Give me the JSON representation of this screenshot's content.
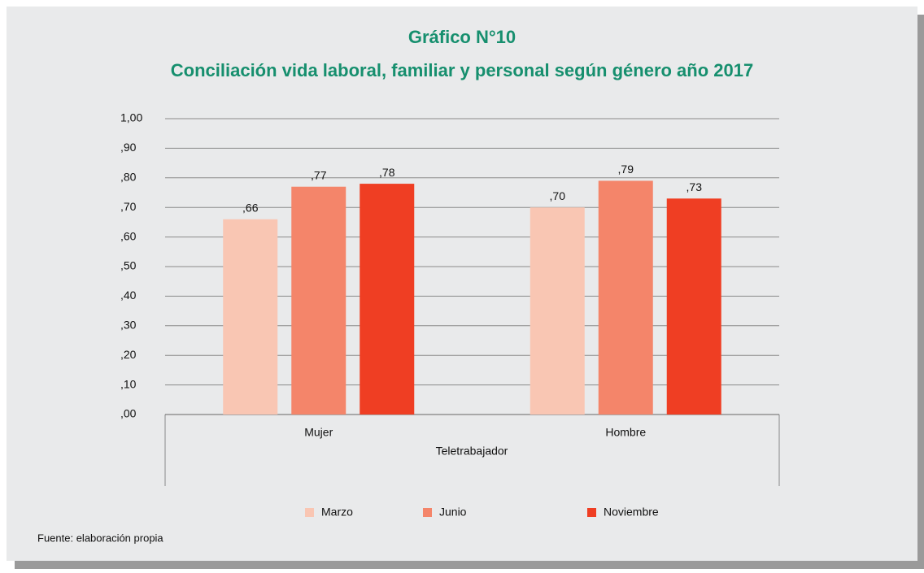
{
  "chart_data": {
    "type": "bar",
    "title": "Gráfico N°10",
    "subtitle": "Conciliación vida laboral, familiar y personal según género año 2017",
    "categories": [
      "Mujer",
      "Hombre"
    ],
    "xlabel": "Teletrabajador",
    "series": [
      {
        "name": "Marzo",
        "color": "#f9c6b3",
        "values": [
          0.66,
          0.7
        ],
        "value_labels": [
          ",66",
          ",70"
        ]
      },
      {
        "name": "Junio",
        "color": "#f4856a",
        "values": [
          0.77,
          0.79
        ],
        "value_labels": [
          ",77",
          ",79"
        ]
      },
      {
        "name": "Noviembre",
        "color": "#ef3e23",
        "values": [
          0.78,
          0.73
        ],
        "value_labels": [
          ",78",
          ",73"
        ]
      }
    ],
    "ylim": [
      0,
      1
    ],
    "yticks": [
      {
        "value": 0,
        "label": ",00"
      },
      {
        "value": 0.1,
        "label": ",10"
      },
      {
        "value": 0.2,
        "label": ",20"
      },
      {
        "value": 0.3,
        "label": ",30"
      },
      {
        "value": 0.4,
        "label": ",40"
      },
      {
        "value": 0.5,
        "label": ",50"
      },
      {
        "value": 0.6,
        "label": ",60"
      },
      {
        "value": 0.7,
        "label": ",70"
      },
      {
        "value": 0.8,
        "label": ",80"
      },
      {
        "value": 0.9,
        "label": ",90"
      },
      {
        "value": 1,
        "label": "1,00"
      }
    ],
    "grid": true,
    "legend": "bottom",
    "source": "Fuente: elaboración propia"
  }
}
